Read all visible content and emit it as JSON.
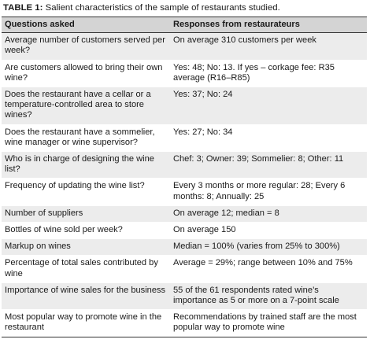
{
  "caption": {
    "label": "TABLE 1:",
    "text": "Salient characteristics of the sample of restaurants studied."
  },
  "table": {
    "header": [
      "Questions asked",
      "Responses from restaurateurs"
    ],
    "rows": [
      [
        "Average number of customers served per week?",
        "On average 310 customers per week"
      ],
      [
        "Are customers allowed to bring their own wine?",
        "Yes: 48; No: 13. If yes – corkage fee: R35 average (R16–R85)"
      ],
      [
        "Does the restaurant have a cellar or a temperature-controlled area to store wines?",
        "Yes: 37; No: 24"
      ],
      [
        "Does the restaurant have a sommelier, wine manager or wine supervisor?",
        "Yes: 27; No: 34"
      ],
      [
        "Who is in charge of designing the wine list?",
        "Chef: 3; Owner: 39; Sommelier: 8; Other: 11"
      ],
      [
        "Frequency of updating the wine list?",
        "Every 3 months or more regular: 28; Every 6 months: 8; Annually: 25"
      ],
      [
        "Number of suppliers",
        "On average 12; median = 8"
      ],
      [
        "Bottles of wine sold per week?",
        "On average 150"
      ],
      [
        "Markup on wines",
        "Median = 100% (varies from 25% to 300%)"
      ],
      [
        "Percentage of total sales contributed by wine",
        "Average = 29%; range between 10% and 75%"
      ],
      [
        "Importance of wine sales for the business",
        "55 of the 61 respondents rated wine’s importance as 5 or more on a 7-point scale"
      ],
      [
        "Most popular way to promote wine in the restaurant",
        "Recommendations by trained staff are the most popular way to promote wine"
      ]
    ]
  }
}
